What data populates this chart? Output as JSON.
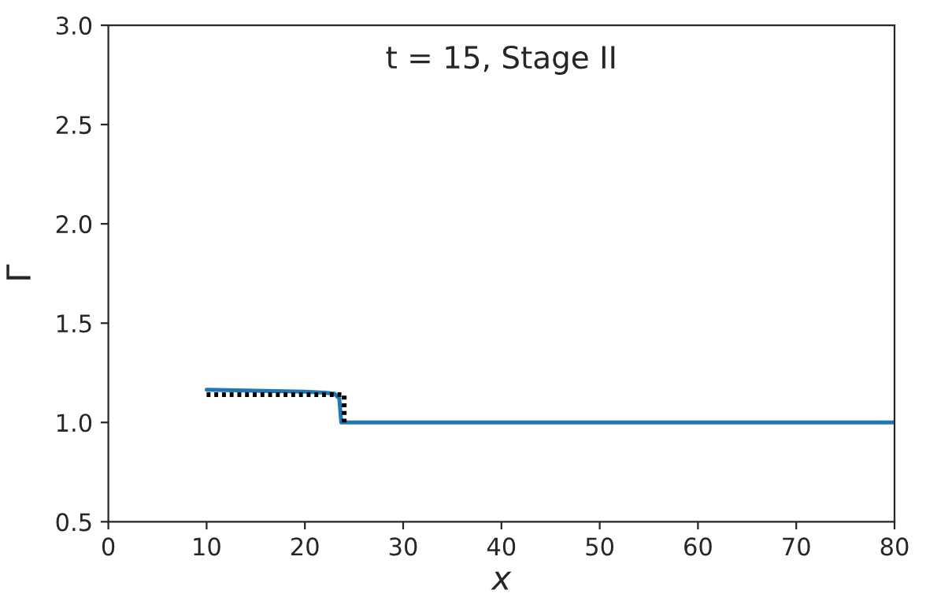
{
  "chart_data": {
    "type": "line",
    "title": "t = 15, Stage II",
    "xlabel": "x",
    "ylabel": "Γ",
    "xlim": [
      0,
      80
    ],
    "ylim": [
      0.5,
      3.0
    ],
    "xticks": [
      0,
      10,
      20,
      30,
      40,
      50,
      60,
      70,
      80
    ],
    "yticks": [
      {
        "value": 0.5,
        "label": "0.5"
      },
      {
        "value": 1.0,
        "label": "1.0"
      },
      {
        "value": 1.5,
        "label": "1.5"
      },
      {
        "value": 2.0,
        "label": "2.0"
      },
      {
        "value": 2.5,
        "label": "2.5"
      },
      {
        "value": 3.0,
        "label": "3.0"
      }
    ],
    "grid": false,
    "legend": false,
    "series": [
      {
        "color": "#1f77b4",
        "line_style": "solid",
        "x": [
          10,
          15,
          20,
          22,
          23,
          23.5,
          23.7,
          24,
          30,
          40,
          50,
          60,
          70,
          80
        ],
        "values": [
          1.165,
          1.16,
          1.155,
          1.15,
          1.145,
          1.12,
          1.0,
          1.0,
          1.0,
          1.0,
          1.0,
          1.0,
          1.0,
          1.0
        ]
      },
      {
        "color": "#000000",
        "line_style": "dotted",
        "x": [
          10,
          15,
          20,
          24,
          24
        ],
        "values": [
          1.14,
          1.14,
          1.14,
          1.14,
          1.0
        ]
      }
    ]
  }
}
